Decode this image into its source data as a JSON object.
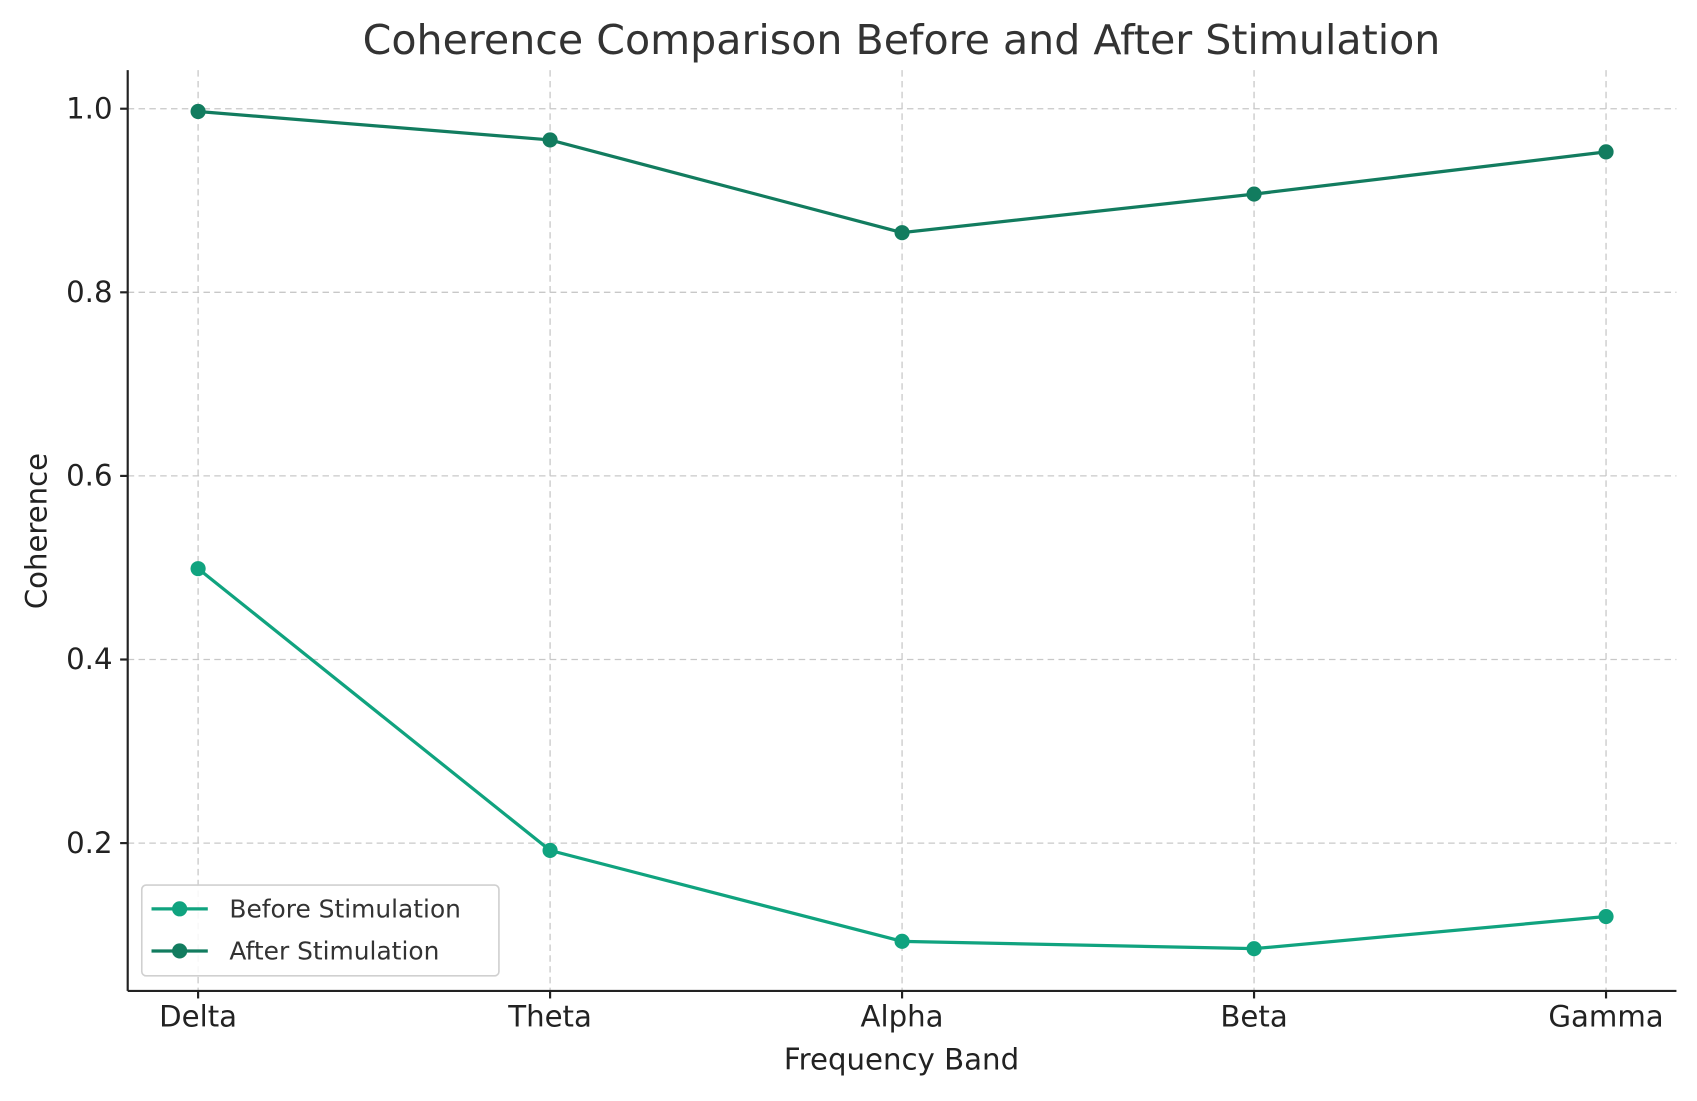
{
  "chart_data": {
    "type": "line",
    "title": "Coherence Comparison Before and After Stimulation",
    "xlabel": "Frequency Band",
    "ylabel": "Coherence",
    "categories": [
      "Delta",
      "Theta",
      "Alpha",
      "Beta",
      "Gamma"
    ],
    "ylim": [
      0.039,
      1.042
    ],
    "yticks": [
      0.2,
      0.4,
      0.6,
      0.8,
      1.0
    ],
    "ytick_labels": [
      "0.2",
      "0.4",
      "0.6",
      "0.8",
      "1.0"
    ],
    "grid": true,
    "legend_position": "bottom-left",
    "series": [
      {
        "name": "Before Stimulation",
        "color": "#10a37f",
        "marker": "circle",
        "values": [
          0.499,
          0.192,
          0.093,
          0.085,
          0.12
        ]
      },
      {
        "name": "After Stimulation",
        "color": "#127c5f",
        "marker": "circle",
        "values": [
          0.997,
          0.966,
          0.865,
          0.907,
          0.953
        ]
      }
    ]
  }
}
